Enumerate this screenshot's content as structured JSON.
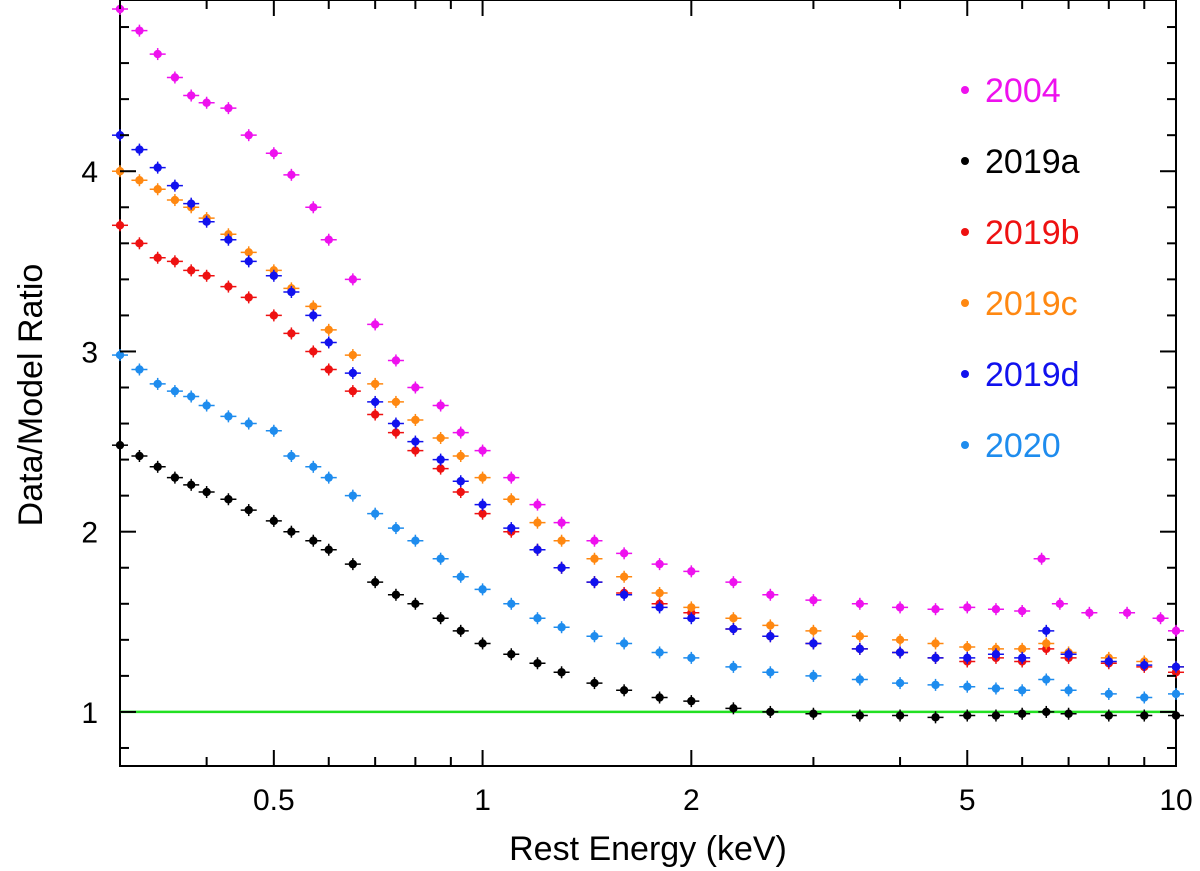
{
  "chart_data": {
    "type": "scatter",
    "xlabel": "Rest Energy (keV)",
    "ylabel": "Data/Model Ratio",
    "xscale": "log",
    "xlim": [
      0.3,
      10
    ],
    "ylim": [
      0.7,
      4.95
    ],
    "x_ticks": [
      0.5,
      1,
      2,
      5,
      10
    ],
    "x_tick_labels": [
      "0.5",
      "1",
      "2",
      "5",
      "10"
    ],
    "y_ticks": [
      1,
      2,
      3,
      4
    ],
    "y_tick_labels": [
      "1",
      "2",
      "3",
      "4"
    ],
    "grid": false,
    "legend_position": "top-right",
    "reference_line": {
      "y": 1.0,
      "color": "#22e022"
    },
    "series": [
      {
        "name": "2004",
        "color": "#ee11ee",
        "x": [
          0.3,
          0.32,
          0.34,
          0.36,
          0.38,
          0.4,
          0.43,
          0.46,
          0.5,
          0.53,
          0.57,
          0.6,
          0.65,
          0.7,
          0.75,
          0.8,
          0.87,
          0.93,
          1.0,
          1.1,
          1.2,
          1.3,
          1.45,
          1.6,
          1.8,
          2.0,
          2.3,
          2.6,
          3.0,
          3.5,
          4.0,
          4.5,
          5.0,
          5.5,
          6.0,
          6.4,
          6.8,
          7.5,
          8.5,
          9.5,
          10.0
        ],
        "y": [
          4.9,
          4.78,
          4.65,
          4.52,
          4.42,
          4.38,
          4.35,
          4.2,
          4.1,
          3.98,
          3.8,
          3.62,
          3.4,
          3.15,
          2.95,
          2.8,
          2.7,
          2.55,
          2.45,
          2.3,
          2.15,
          2.05,
          1.95,
          1.88,
          1.82,
          1.78,
          1.72,
          1.65,
          1.62,
          1.6,
          1.58,
          1.57,
          1.58,
          1.57,
          1.56,
          1.85,
          1.6,
          1.55,
          1.55,
          1.52,
          1.45
        ]
      },
      {
        "name": "2019a",
        "color": "#000000",
        "x": [
          0.3,
          0.32,
          0.34,
          0.36,
          0.38,
          0.4,
          0.43,
          0.46,
          0.5,
          0.53,
          0.57,
          0.6,
          0.65,
          0.7,
          0.75,
          0.8,
          0.87,
          0.93,
          1.0,
          1.1,
          1.2,
          1.3,
          1.45,
          1.6,
          1.8,
          2.0,
          2.3,
          2.6,
          3.0,
          3.5,
          4.0,
          4.5,
          5.0,
          5.5,
          6.0,
          6.5,
          7.0,
          8.0,
          9.0,
          10.0
        ],
        "y": [
          2.48,
          2.42,
          2.36,
          2.3,
          2.26,
          2.22,
          2.18,
          2.12,
          2.06,
          2.0,
          1.95,
          1.9,
          1.82,
          1.72,
          1.65,
          1.6,
          1.52,
          1.45,
          1.38,
          1.32,
          1.27,
          1.22,
          1.16,
          1.12,
          1.08,
          1.06,
          1.02,
          1.0,
          0.99,
          0.98,
          0.98,
          0.97,
          0.98,
          0.98,
          0.99,
          1.0,
          0.99,
          0.98,
          0.98,
          0.98
        ]
      },
      {
        "name": "2019b",
        "color": "#ee1111",
        "x": [
          0.3,
          0.32,
          0.34,
          0.36,
          0.38,
          0.4,
          0.43,
          0.46,
          0.5,
          0.53,
          0.57,
          0.6,
          0.65,
          0.7,
          0.75,
          0.8,
          0.87,
          0.93,
          1.0,
          1.1,
          1.2,
          1.3,
          1.45,
          1.6,
          1.8,
          2.0,
          2.3,
          2.6,
          3.0,
          3.5,
          4.0,
          4.5,
          5.0,
          5.5,
          6.0,
          6.5,
          7.0,
          8.0,
          9.0,
          10.0
        ],
        "y": [
          3.7,
          3.6,
          3.52,
          3.5,
          3.45,
          3.42,
          3.36,
          3.3,
          3.2,
          3.1,
          3.0,
          2.9,
          2.78,
          2.65,
          2.55,
          2.45,
          2.35,
          2.22,
          2.1,
          2.0,
          1.9,
          1.8,
          1.72,
          1.66,
          1.6,
          1.55,
          1.46,
          1.42,
          1.38,
          1.35,
          1.33,
          1.3,
          1.28,
          1.3,
          1.28,
          1.35,
          1.3,
          1.27,
          1.25,
          1.22
        ]
      },
      {
        "name": "2019c",
        "color": "#ff8811",
        "x": [
          0.3,
          0.32,
          0.34,
          0.36,
          0.38,
          0.4,
          0.43,
          0.46,
          0.5,
          0.53,
          0.57,
          0.6,
          0.65,
          0.7,
          0.75,
          0.8,
          0.87,
          0.93,
          1.0,
          1.1,
          1.2,
          1.3,
          1.45,
          1.6,
          1.8,
          2.0,
          2.3,
          2.6,
          3.0,
          3.5,
          4.0,
          4.5,
          5.0,
          5.5,
          6.0,
          6.5,
          7.0,
          8.0,
          9.0,
          10.0
        ],
        "y": [
          4.0,
          3.95,
          3.9,
          3.84,
          3.8,
          3.74,
          3.65,
          3.55,
          3.45,
          3.35,
          3.25,
          3.12,
          2.98,
          2.82,
          2.72,
          2.62,
          2.52,
          2.42,
          2.3,
          2.18,
          2.05,
          1.95,
          1.85,
          1.75,
          1.66,
          1.58,
          1.52,
          1.48,
          1.45,
          1.42,
          1.4,
          1.38,
          1.36,
          1.35,
          1.35,
          1.38,
          1.33,
          1.3,
          1.28,
          1.25
        ]
      },
      {
        "name": "2019d",
        "color": "#1111ee",
        "x": [
          0.3,
          0.32,
          0.34,
          0.36,
          0.38,
          0.4,
          0.43,
          0.46,
          0.5,
          0.53,
          0.57,
          0.6,
          0.65,
          0.7,
          0.75,
          0.8,
          0.87,
          0.93,
          1.0,
          1.1,
          1.2,
          1.3,
          1.45,
          1.6,
          1.8,
          2.0,
          2.3,
          2.6,
          3.0,
          3.5,
          4.0,
          4.5,
          5.0,
          5.5,
          6.0,
          6.5,
          7.0,
          8.0,
          9.0,
          10.0
        ],
        "y": [
          4.2,
          4.12,
          4.02,
          3.92,
          3.82,
          3.72,
          3.62,
          3.5,
          3.42,
          3.33,
          3.2,
          3.05,
          2.88,
          2.72,
          2.6,
          2.5,
          2.4,
          2.28,
          2.15,
          2.02,
          1.9,
          1.8,
          1.72,
          1.65,
          1.58,
          1.52,
          1.46,
          1.42,
          1.38,
          1.35,
          1.33,
          1.3,
          1.3,
          1.32,
          1.3,
          1.45,
          1.32,
          1.28,
          1.26,
          1.25
        ]
      },
      {
        "name": "2020",
        "color": "#1e8cee",
        "x": [
          0.3,
          0.32,
          0.34,
          0.36,
          0.38,
          0.4,
          0.43,
          0.46,
          0.5,
          0.53,
          0.57,
          0.6,
          0.65,
          0.7,
          0.75,
          0.8,
          0.87,
          0.93,
          1.0,
          1.1,
          1.2,
          1.3,
          1.45,
          1.6,
          1.8,
          2.0,
          2.3,
          2.6,
          3.0,
          3.5,
          4.0,
          4.5,
          5.0,
          5.5,
          6.0,
          6.5,
          7.0,
          8.0,
          9.0,
          10.0
        ],
        "y": [
          2.98,
          2.9,
          2.82,
          2.78,
          2.75,
          2.7,
          2.64,
          2.6,
          2.56,
          2.42,
          2.36,
          2.3,
          2.2,
          2.1,
          2.02,
          1.95,
          1.85,
          1.75,
          1.68,
          1.6,
          1.52,
          1.47,
          1.42,
          1.38,
          1.33,
          1.3,
          1.25,
          1.22,
          1.2,
          1.18,
          1.16,
          1.15,
          1.14,
          1.13,
          1.12,
          1.18,
          1.12,
          1.1,
          1.08,
          1.1
        ]
      }
    ]
  }
}
